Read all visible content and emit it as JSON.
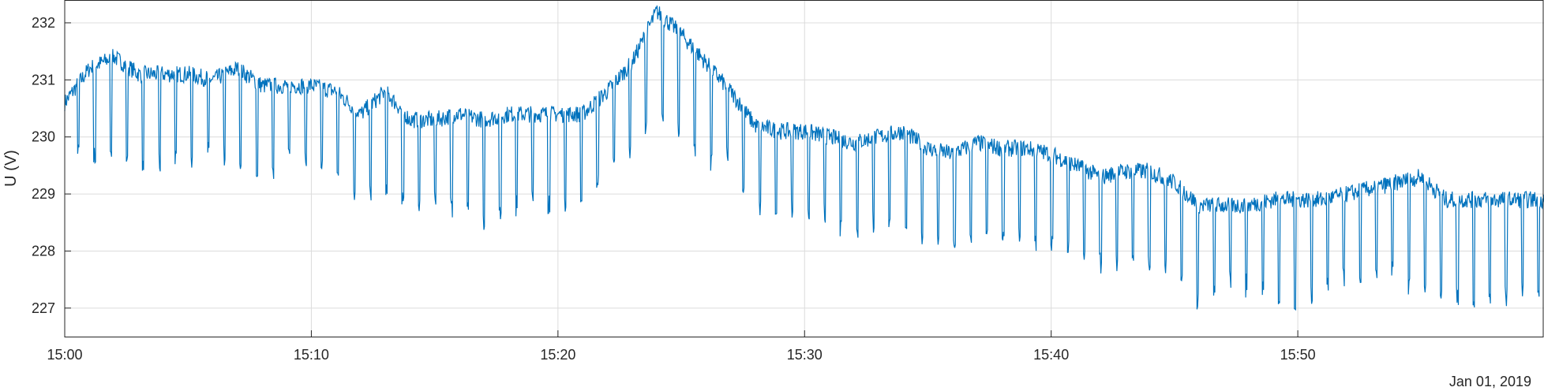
{
  "chart_data": {
    "type": "line",
    "title": "",
    "xlabel": "",
    "ylabel": "U (V)",
    "date_label": "Jan 01, 2019",
    "xlim": [
      "15:00",
      "15:59:59"
    ],
    "ylim": [
      226.5,
      232.4
    ],
    "x_ticks": [
      "15:00",
      "15:10",
      "15:20",
      "15:30",
      "15:40",
      "15:50"
    ],
    "y_ticks": [
      227,
      228,
      229,
      230,
      231,
      232
    ],
    "grid": true,
    "line_color": "#0072BD",
    "grid_color": "#dcdcdc",
    "axis_color": "#262626",
    "series": [
      {
        "x": [
          "15:00",
          "15:01",
          "15:02",
          "15:03",
          "15:04",
          "15:05",
          "15:06",
          "15:07",
          "15:08",
          "15:09",
          "15:10",
          "15:11",
          "15:12",
          "15:13",
          "15:14",
          "15:15",
          "15:16",
          "15:17",
          "15:18",
          "15:19",
          "15:20",
          "15:21",
          "15:22",
          "15:23",
          "15:24",
          "15:25",
          "15:26",
          "15:27",
          "15:28",
          "15:29",
          "15:30",
          "15:31",
          "15:32",
          "15:33",
          "15:34",
          "15:35",
          "15:36",
          "15:37",
          "15:38",
          "15:39",
          "15:40",
          "15:41",
          "15:42",
          "15:43",
          "15:44",
          "15:45",
          "15:46",
          "15:47",
          "15:48",
          "15:49",
          "15:50",
          "15:51",
          "15:52",
          "15:53",
          "15:54",
          "15:55",
          "15:56",
          "15:57",
          "15:58",
          "15:59"
        ],
        "values": [
          230.6,
          231.2,
          231.4,
          231.1,
          231.1,
          231.1,
          231.0,
          231.2,
          230.9,
          230.9,
          230.9,
          230.8,
          230.4,
          230.8,
          230.3,
          230.3,
          230.4,
          230.3,
          230.4,
          230.4,
          230.4,
          230.4,
          230.8,
          231.3,
          232.2,
          231.8,
          231.3,
          230.8,
          230.2,
          230.1,
          230.1,
          230.0,
          229.9,
          230.0,
          230.1,
          229.8,
          229.7,
          229.9,
          229.8,
          229.8,
          229.7,
          229.5,
          229.3,
          229.4,
          229.4,
          229.2,
          228.8,
          228.8,
          228.8,
          228.9,
          228.9,
          228.9,
          229.0,
          229.1,
          229.2,
          229.3,
          228.9,
          228.9,
          228.9,
          228.9
        ],
        "dips": [
          229.9,
          229.6,
          229.8,
          229.4,
          229.5,
          229.6,
          229.7,
          229.6,
          229.3,
          229.6,
          229.5,
          229.4,
          228.9,
          229.0,
          228.7,
          228.9,
          228.8,
          228.4,
          228.8,
          228.9,
          228.9,
          228.9,
          229.4,
          229.8,
          230.5,
          230.1,
          229.6,
          229.6,
          228.7,
          228.8,
          228.7,
          228.6,
          228.4,
          228.6,
          228.4,
          228.2,
          228.1,
          228.3,
          228.2,
          228.2,
          228.1,
          228.0,
          227.8,
          227.9,
          227.8,
          227.7,
          227.0,
          227.4,
          227.4,
          227.3,
          227.1,
          227.4,
          227.5,
          227.5,
          227.6,
          227.4,
          227.2,
          227.2,
          227.1,
          227.3
        ]
      }
    ]
  }
}
